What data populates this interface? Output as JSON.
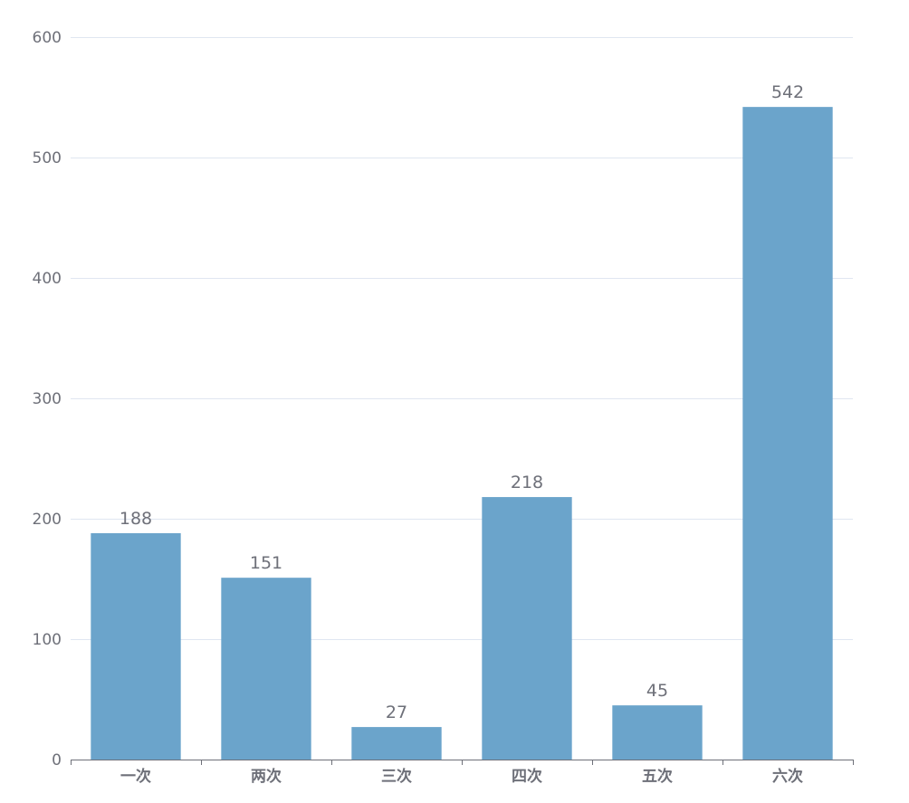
{
  "chart_data": {
    "type": "bar",
    "title": "",
    "xlabel": "",
    "ylabel": "",
    "categories": [
      "一次",
      "两次",
      "三次",
      "四次",
      "五次",
      "六次"
    ],
    "values": [
      188,
      151,
      27,
      218,
      45,
      542
    ],
    "ylim": [
      0,
      600
    ],
    "yticks": [
      0,
      100,
      200,
      300,
      400,
      500,
      600
    ],
    "grid": true,
    "legend": "none",
    "data_labels": true,
    "bar_color": "#6ba4cb",
    "grid_color": "#e0e6f1",
    "axis_color": "#6e7079"
  }
}
